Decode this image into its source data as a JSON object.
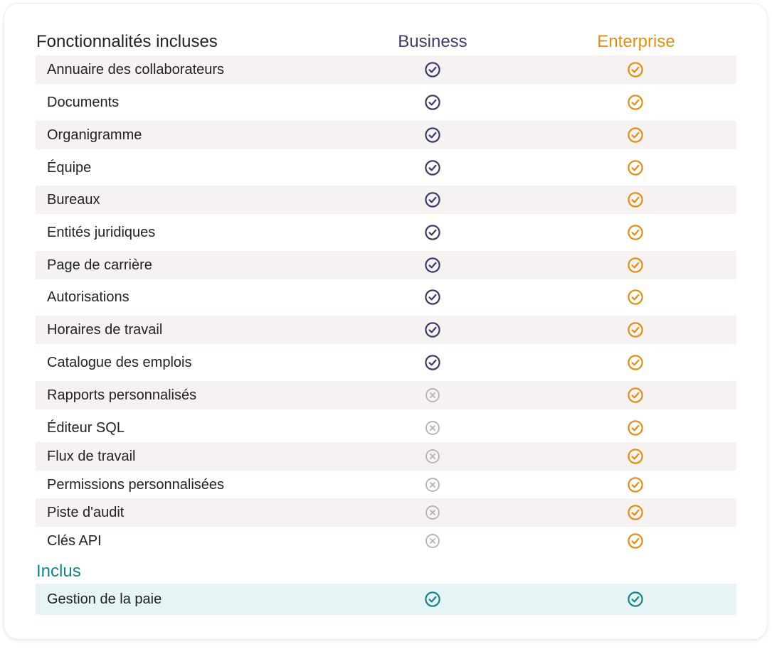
{
  "header": {
    "features": "Fonctionnalités incluses",
    "business": "Business",
    "enterprise": "Enterprise"
  },
  "colors": {
    "business": "#3c3a6a",
    "enterprise": "#df8f14",
    "excluded": "#b5b5b5",
    "included": "#12858a"
  },
  "features": [
    {
      "label": "Annuaire des collaborateurs",
      "business": "check-circle-icon",
      "enterprise": "check-circle-icon"
    },
    {
      "label": "Documents",
      "business": "check-circle-icon",
      "enterprise": "check-circle-icon"
    },
    {
      "label": "Organigramme",
      "business": "check-circle-icon",
      "enterprise": "check-circle-icon"
    },
    {
      "label": "Équipe",
      "business": "check-circle-icon",
      "enterprise": "check-circle-icon"
    },
    {
      "label": "Bureaux",
      "business": "check-circle-icon",
      "enterprise": "check-circle-icon"
    },
    {
      "label": "Entités juridiques",
      "business": "check-circle-icon",
      "enterprise": "check-circle-icon"
    },
    {
      "label": "Page de carrière",
      "business": "check-circle-icon",
      "enterprise": "check-circle-icon"
    },
    {
      "label": "Autorisations",
      "business": "check-circle-icon",
      "enterprise": "check-circle-icon"
    },
    {
      "label": "Horaires de travail",
      "business": "check-circle-icon",
      "enterprise": "check-circle-icon"
    },
    {
      "label": "Catalogue des emplois",
      "business": "check-circle-icon",
      "enterprise": "check-circle-icon"
    },
    {
      "label": "Rapports personnalisés",
      "business": "x-circle-icon",
      "enterprise": "check-circle-icon"
    },
    {
      "label": "Éditeur SQL",
      "business": "x-circle-icon",
      "enterprise": "check-circle-icon"
    },
    {
      "label": "Flux de travail",
      "business": "x-circle-icon",
      "enterprise": "check-circle-icon"
    },
    {
      "label": "Permissions personnalisées",
      "business": "x-circle-icon",
      "enterprise": "check-circle-icon"
    },
    {
      "label": "Piste d'audit",
      "business": "x-circle-icon",
      "enterprise": "check-circle-icon"
    },
    {
      "label": "Clés API",
      "business": "x-circle-icon",
      "enterprise": "check-circle-icon"
    }
  ],
  "included_section": {
    "title": "Inclus",
    "items": [
      {
        "label": "Gestion de la paie",
        "business": "check-circle-icon",
        "enterprise": "check-circle-icon"
      }
    ]
  }
}
